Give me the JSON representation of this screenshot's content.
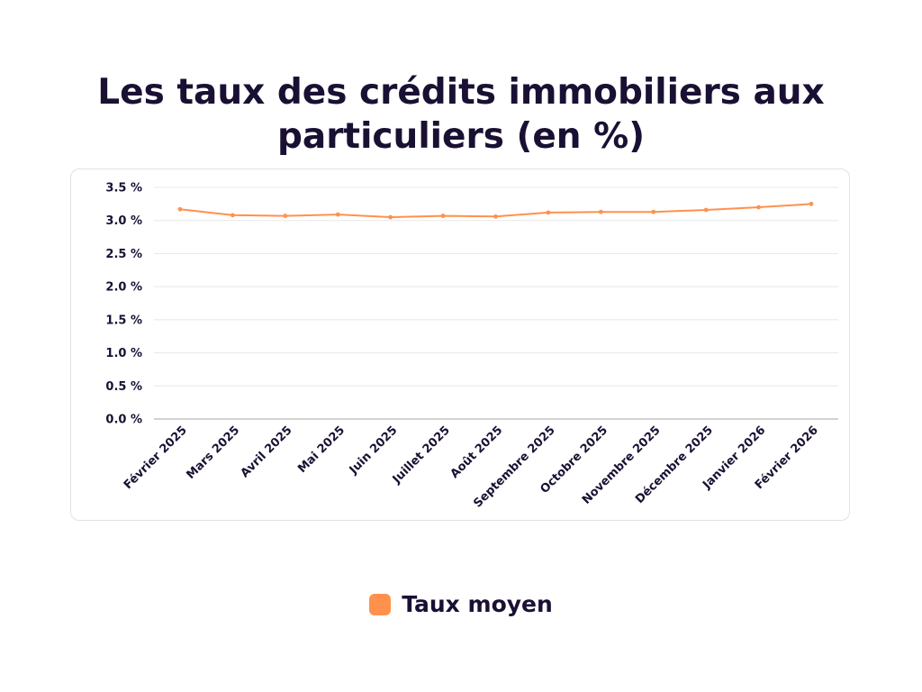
{
  "title_lines": [
    "Les taux des crédits immobiliers aux",
    "particuliers (en %)"
  ],
  "legend": {
    "label": "Taux moyen"
  },
  "colors": {
    "series": "#ff914d",
    "text": "#1a1033",
    "grid": "#e8e8e8",
    "axis": "#b8b8b8"
  },
  "chart_data": {
    "type": "line",
    "title": "Les taux des crédits immobiliers aux particuliers (en %)",
    "categories": [
      "Février 2025",
      "Mars 2025",
      "Avril 2025",
      "Mai 2025",
      "Juin 2025",
      "Juillet 2025",
      "Août 2025",
      "Septembre 2025",
      "Octobre 2025",
      "Novembre 2025",
      "Décembre 2025",
      "Janvier 2026",
      "Février 2026"
    ],
    "series": [
      {
        "name": "Taux moyen",
        "values": [
          3.17,
          3.08,
          3.07,
          3.09,
          3.05,
          3.07,
          3.06,
          3.12,
          3.13,
          3.13,
          3.16,
          3.2,
          3.25
        ]
      }
    ],
    "ylim": [
      0,
      3.5
    ],
    "yticks": [
      "0.0 %",
      "0.5 %",
      "1.0 %",
      "1.5 %",
      "2.0 %",
      "2.5 %",
      "3.0 %",
      "3.5 %"
    ],
    "ytick_values": [
      0,
      0.5,
      1.0,
      1.5,
      2.0,
      2.5,
      3.0,
      3.5
    ],
    "grid": true,
    "legend_position": "bottom"
  }
}
